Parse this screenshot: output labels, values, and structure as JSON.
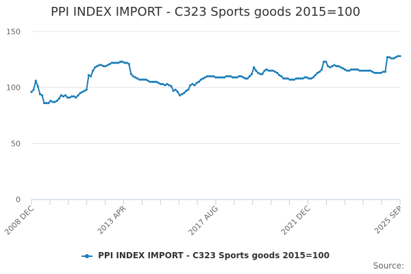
{
  "chart_data": {
    "type": "line",
    "title": "PPI INDEX IMPORT - C323 Sports goods 2015=100",
    "xlabel": "",
    "ylabel": "",
    "ylim": [
      0,
      150
    ],
    "yticks": [
      "0",
      "50",
      "100",
      "150"
    ],
    "grid": true,
    "legend_position": "bottom",
    "x_tick_labels": [
      "2008 DEC",
      "2013 APR",
      "2017 AUG",
      "2021 DEC",
      "2025 SEP"
    ],
    "series": [
      {
        "name": "PPI INDEX IMPORT - C323 Sports goods 2015=100",
        "color": "#1a7cb8",
        "start": "2008 DEC",
        "end": "2025 SEP",
        "values": [
          96,
          98,
          106,
          101,
          94,
          93,
          86,
          86,
          86,
          88,
          87,
          87,
          88,
          90,
          93,
          92,
          93,
          91,
          91,
          92,
          92,
          91,
          93,
          95,
          96,
          97,
          98,
          111,
          110,
          115,
          118,
          119,
          120,
          120,
          119,
          119,
          120,
          121,
          122,
          122,
          122,
          122,
          123,
          123,
          122,
          122,
          121,
          112,
          110,
          109,
          108,
          107,
          107,
          107,
          107,
          106,
          105,
          105,
          105,
          105,
          104,
          103,
          103,
          102,
          103,
          102,
          101,
          97,
          98,
          96,
          93,
          94,
          95,
          97,
          98,
          102,
          103,
          102,
          104,
          105,
          107,
          108,
          109,
          110,
          110,
          110,
          110,
          109,
          109,
          109,
          109,
          109,
          110,
          110,
          110,
          109,
          109,
          109,
          110,
          110,
          109,
          108,
          108,
          110,
          112,
          118,
          115,
          113,
          112,
          112,
          115,
          116,
          115,
          115,
          115,
          114,
          113,
          111,
          110,
          108,
          108,
          108,
          107,
          107,
          107,
          108,
          108,
          108,
          108,
          109,
          109,
          108,
          108,
          109,
          111,
          113,
          114,
          116,
          123,
          123,
          119,
          118,
          119,
          120,
          119,
          119,
          118,
          117,
          116,
          115,
          115,
          116,
          116,
          116,
          116,
          115,
          115,
          115,
          115,
          115,
          115,
          114,
          113,
          113,
          113,
          113,
          114,
          114,
          127,
          127,
          126,
          126,
          127,
          128,
          128
        ]
      }
    ]
  },
  "source_label": "Source:"
}
